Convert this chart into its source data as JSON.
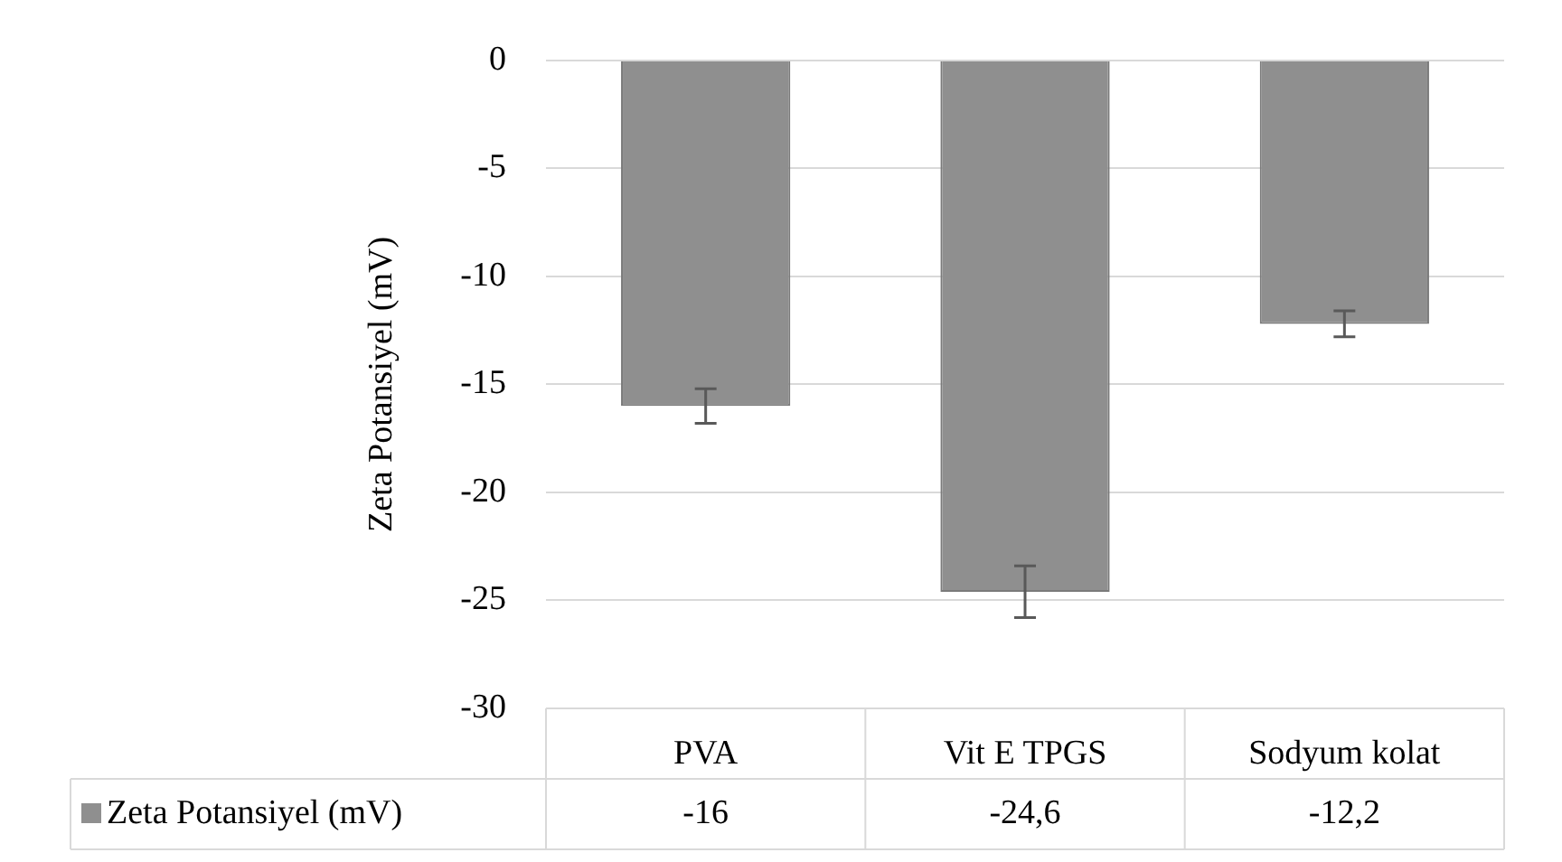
{
  "chart_data": {
    "type": "bar",
    "ylabel": "Zeta Potansiyel (mV)",
    "categories": [
      "PVA",
      "Vit E TPGS",
      "Sodyum kolat"
    ],
    "series": [
      {
        "name": "Zeta Potansiyel (mV)",
        "color": "#8f8f8f",
        "values": [
          -16,
          -24.6,
          -12.2
        ],
        "errors": [
          0.8,
          1.2,
          0.6
        ],
        "value_labels": [
          "-16",
          "-24,6",
          "-12,2"
        ]
      }
    ],
    "ylim": [
      -30,
      0
    ],
    "yticks": [
      -30,
      -25,
      -20,
      -15,
      -10,
      -5,
      0
    ],
    "grid": "y",
    "legend": "bottom"
  }
}
